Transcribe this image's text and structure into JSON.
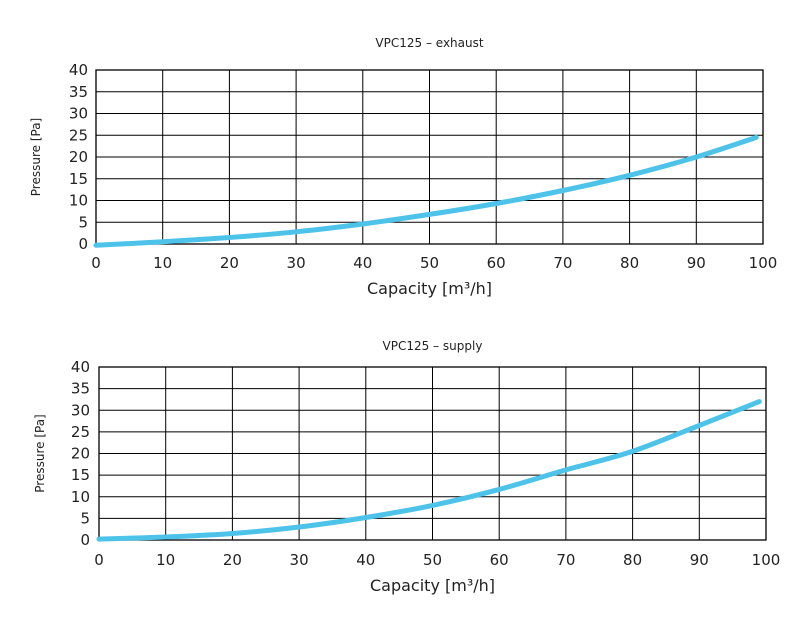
{
  "chart_data": [
    {
      "type": "line",
      "title": "VPC125 – exhaust",
      "xlabel": "Capacity [m³/h]",
      "ylabel": "Pressure [Pa]",
      "xlim": [
        0,
        100
      ],
      "ylim": [
        0,
        40
      ],
      "xticks": [
        0,
        10,
        20,
        30,
        40,
        50,
        60,
        70,
        80,
        90,
        100
      ],
      "yticks": [
        0,
        5,
        10,
        15,
        20,
        25,
        30,
        35,
        40
      ],
      "grid": true,
      "color": "#4dc3ea",
      "series": [
        {
          "x": [
            0,
            10,
            20,
            30,
            40,
            50,
            60,
            70,
            80,
            90,
            99
          ],
          "y": [
            -0.3,
            0.5,
            1.5,
            2.8,
            4.6,
            6.8,
            9.3,
            12.3,
            15.8,
            20.0,
            24.5
          ]
        }
      ]
    },
    {
      "type": "line",
      "title": "VPC125 – supply",
      "xlabel": "Capacity [m³/h]",
      "ylabel": "Pressure [Pa]",
      "xlim": [
        0,
        100
      ],
      "ylim": [
        0,
        40
      ],
      "xticks": [
        0,
        10,
        20,
        30,
        40,
        50,
        60,
        70,
        80,
        90,
        100
      ],
      "yticks": [
        0,
        5,
        10,
        15,
        20,
        25,
        30,
        35,
        40
      ],
      "grid": true,
      "color": "#4dc3ea",
      "series": [
        {
          "x": [
            0,
            10,
            20,
            30,
            40,
            50,
            60,
            70,
            80,
            90,
            99
          ],
          "y": [
            0.2,
            0.7,
            1.5,
            3.0,
            5.2,
            8.0,
            11.7,
            16.2,
            20.5,
            26.5,
            32.0
          ]
        }
      ]
    }
  ]
}
